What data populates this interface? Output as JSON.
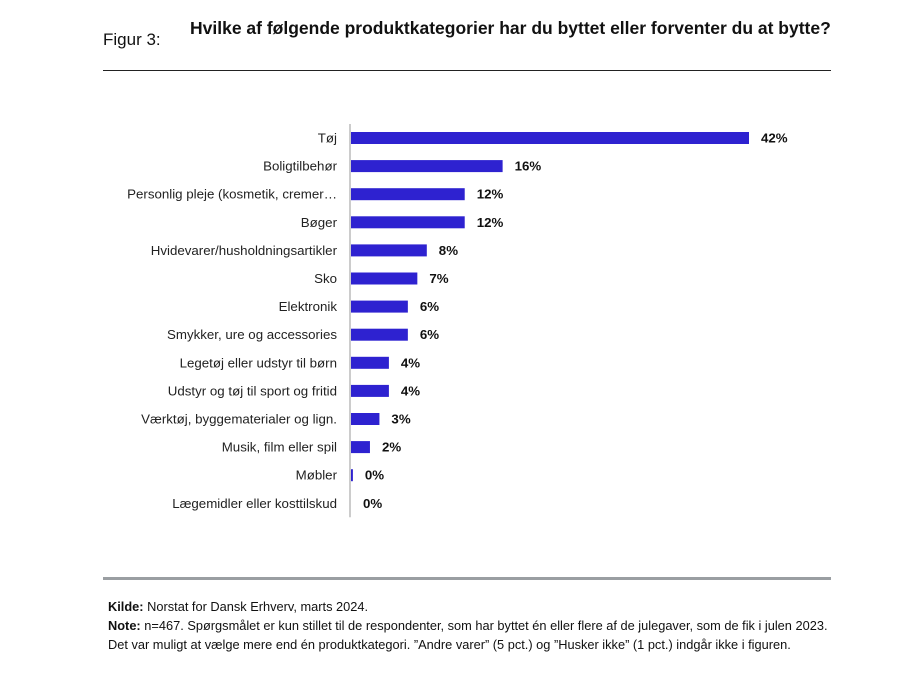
{
  "figure": {
    "label": "Figur 3:",
    "title": "Hvilke af følgende produktkategorier har du byttet eller forventer du at bytte?"
  },
  "chart_data": {
    "type": "bar",
    "orientation": "horizontal",
    "title": "Hvilke af følgende produktkategorier har du byttet eller forventer du at bytte?",
    "xlabel": "",
    "ylabel": "",
    "unit": "%",
    "xlim": [
      0,
      42
    ],
    "color": "#2e22d0",
    "categories": [
      "Tøj",
      "Boligtilbehør",
      "Personlig pleje (kosmetik, cremer…",
      "Bøger",
      "Hvidevarer/husholdningsartikler",
      "Sko",
      "Elektronik",
      "Smykker, ure og accessories",
      "Legetøj eller udstyr til børn",
      "Udstyr og tøj til sport og fritid",
      "Værktøj, byggematerialer og lign.",
      "Musik, film eller spil",
      "Møbler",
      "Lægemidler eller kosttilskud"
    ],
    "values": [
      42,
      16,
      12,
      12,
      8,
      7,
      6,
      6,
      4,
      4,
      3,
      2,
      0.2,
      0
    ],
    "value_labels": [
      "42%",
      "16%",
      "12%",
      "12%",
      "8%",
      "7%",
      "6%",
      "6%",
      "4%",
      "4%",
      "3%",
      "2%",
      "0%",
      "0%"
    ]
  },
  "footnote": {
    "source_label": "Kilde:",
    "source_text": "Norstat for Dansk Erhverv, marts 2024.",
    "note_label": "Note:",
    "note_text": "n=467. Spørgsmålet er kun stillet til de respondenter, som har byttet én eller flere af de julegaver, som de fik i julen 2023. Det var muligt at vælge mere end én produktkategori. ”Andre varer” (5 pct.) og ”Husker ikke” (1 pct.) indgår ikke i figuren."
  }
}
